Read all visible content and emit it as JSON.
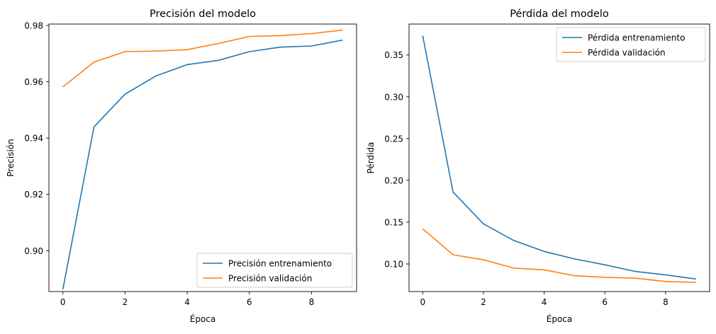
{
  "chart_data": [
    {
      "type": "line",
      "title": "Precisión del modelo",
      "xlabel": "Época",
      "ylabel": "Precisión",
      "xlim": [
        -0.45,
        9.45
      ],
      "ylim": [
        0.8855,
        0.9805
      ],
      "xticks": [
        0,
        2,
        4,
        6,
        8
      ],
      "yticks": [
        0.9,
        0.92,
        0.94,
        0.96,
        0.98
      ],
      "ytick_labels": [
        "0.90",
        "0.92",
        "0.94",
        "0.96",
        "0.98"
      ],
      "grid": false,
      "legend": "lower-right",
      "x": [
        0,
        1,
        2,
        3,
        4,
        5,
        6,
        7,
        8,
        9
      ],
      "series": [
        {
          "name": "Precisión entrenamiento",
          "color": "#1f77b4",
          "values": [
            0.8863,
            0.944,
            0.9556,
            0.9621,
            0.9661,
            0.9676,
            0.9707,
            0.9723,
            0.9727,
            0.9748
          ]
        },
        {
          "name": "Precisión validación",
          "color": "#ff7f0e",
          "values": [
            0.9582,
            0.967,
            0.9707,
            0.9709,
            0.9714,
            0.9736,
            0.9761,
            0.9764,
            0.9771,
            0.9784
          ]
        }
      ]
    },
    {
      "type": "line",
      "title": "Pérdida del modelo",
      "xlabel": "Época",
      "ylabel": "Pérdida",
      "xlim": [
        -0.45,
        9.45
      ],
      "ylim": [
        0.067,
        0.387
      ],
      "xticks": [
        0,
        2,
        4,
        6,
        8
      ],
      "yticks": [
        0.1,
        0.15,
        0.2,
        0.25,
        0.3,
        0.35
      ],
      "ytick_labels": [
        "0.10",
        "0.15",
        "0.20",
        "0.25",
        "0.30",
        "0.35"
      ],
      "grid": false,
      "legend": "upper-right",
      "x": [
        0,
        1,
        2,
        3,
        4,
        5,
        6,
        7,
        8,
        9
      ],
      "series": [
        {
          "name": "Pérdida entrenamiento",
          "color": "#1f77b4",
          "values": [
            0.373,
            0.186,
            0.148,
            0.128,
            0.115,
            0.106,
            0.099,
            0.091,
            0.087,
            0.082
          ]
        },
        {
          "name": "Pérdida validación",
          "color": "#ff7f0e",
          "values": [
            0.142,
            0.111,
            0.105,
            0.095,
            0.093,
            0.086,
            0.084,
            0.083,
            0.079,
            0.078
          ]
        }
      ]
    }
  ]
}
